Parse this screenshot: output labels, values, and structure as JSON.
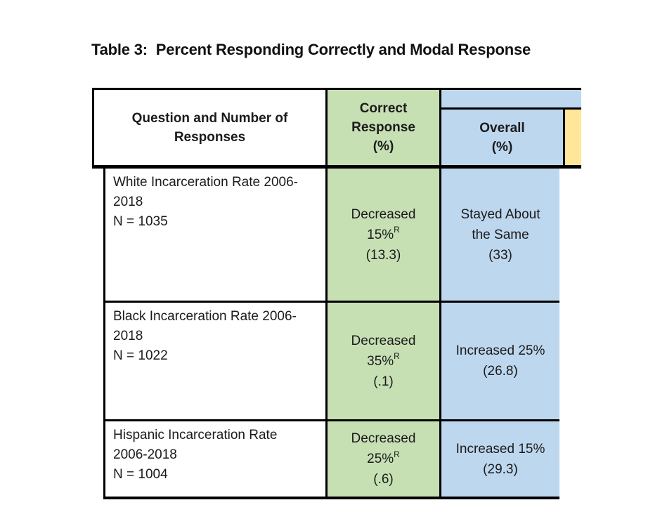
{
  "title": "Table 3:  Percent Responding Correctly and Modal Response",
  "colors": {
    "green": "#C6E0B4",
    "blue": "#BDD7EE",
    "yellow": "#FFE699",
    "border": "#000000"
  },
  "table": {
    "header": {
      "question_lines": [
        "Question and Number of",
        "Responses"
      ],
      "correct_lines": [
        "Correct",
        "Response",
        "(%)"
      ],
      "overall_lines": [
        "Overall",
        "(%)"
      ]
    },
    "rows": [
      {
        "question_lines": [
          "White Incarceration Rate 2006-",
          "2018"
        ],
        "n_label": "N = 1035",
        "correct_word": "Decreased",
        "correct_value": "15%",
        "correct_sup": "R",
        "correct_stat": "(13.3)",
        "overall_line1": "Stayed About",
        "overall_line2": "the Same",
        "overall_stat": "(33)"
      },
      {
        "question_lines": [
          "Black Incarceration Rate 2006-",
          "2018"
        ],
        "n_label": "N = 1022",
        "correct_word": "Decreased",
        "correct_value": "35%",
        "correct_sup": "R",
        "correct_stat": "(.1)",
        "overall_line1": "Increased 25%",
        "overall_line2": "",
        "overall_stat": "(26.8)"
      },
      {
        "question_lines": [
          "Hispanic Incarceration Rate",
          "2006-2018"
        ],
        "n_label": "N = 1004",
        "correct_word": "Decreased",
        "correct_value": "25%",
        "correct_sup": "R",
        "correct_stat": "(.6)",
        "overall_line1": "Increased 15%",
        "overall_line2": "",
        "overall_stat": "(29.3)"
      }
    ]
  }
}
